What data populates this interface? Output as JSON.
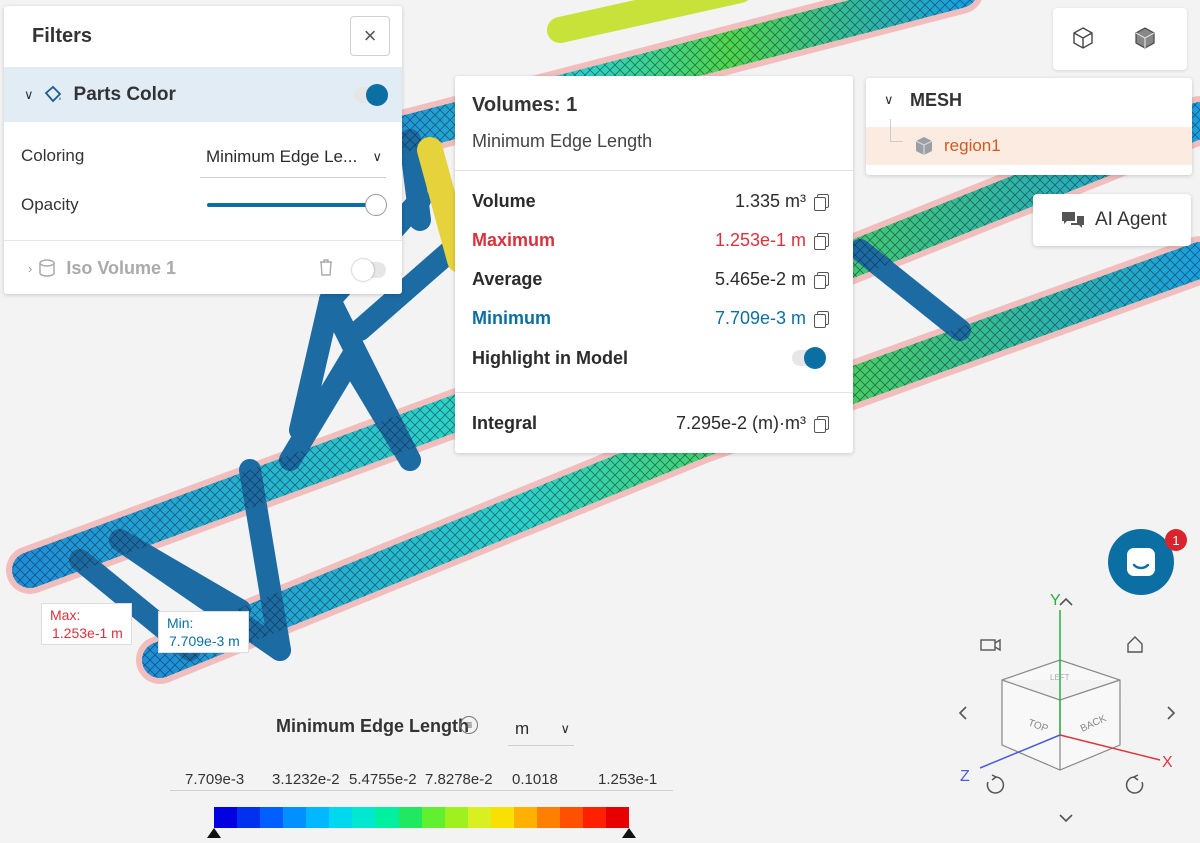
{
  "filters": {
    "title": "Filters",
    "close": "×",
    "parts_color": {
      "label": "Parts Color",
      "enabled": true
    },
    "coloring": {
      "label": "Coloring",
      "value": "Minimum Edge Le..."
    },
    "opacity": {
      "label": "Opacity",
      "value": 1.0
    },
    "iso_volume": {
      "label": "Iso Volume 1",
      "enabled": false
    }
  },
  "stats": {
    "title": "Volumes: 1",
    "subtitle": "Minimum Edge Length",
    "rows": [
      {
        "label": "Volume",
        "value": "1.335 m³"
      },
      {
        "label": "Maximum",
        "value": "1.253e-1 m"
      },
      {
        "label": "Average",
        "value": "5.465e-2 m"
      },
      {
        "label": "Minimum",
        "value": "7.709e-3 m"
      }
    ],
    "highlight": {
      "label": "Highlight in Model",
      "enabled": true
    },
    "integral": {
      "label": "Integral",
      "value": "7.295e-2 (m)·m³"
    }
  },
  "mesh": {
    "header": "MESH",
    "region": "region1"
  },
  "ai_agent": "AI Agent",
  "chat_badge": "1",
  "tags": {
    "max_label": "Max:",
    "max_value": "1.253e-1 m",
    "min_label": "Min:",
    "min_value": "7.709e-3 m"
  },
  "legend": {
    "title": "Minimum Edge Length",
    "unit": "m",
    "ticks": [
      "7.709e-3",
      "3.1232e-2",
      "5.4755e-2",
      "7.8278e-2",
      "0.1018",
      "1.253e-1"
    ]
  },
  "gizmo": {
    "x": "X",
    "y": "Y",
    "z": "Z",
    "top": "TOP",
    "back": "BACK",
    "left": "LEFT"
  },
  "colors": {
    "accent": "#0b6fa3",
    "max": "#d8323c",
    "min": "#0b6fa3",
    "region": "#d35a1e"
  }
}
